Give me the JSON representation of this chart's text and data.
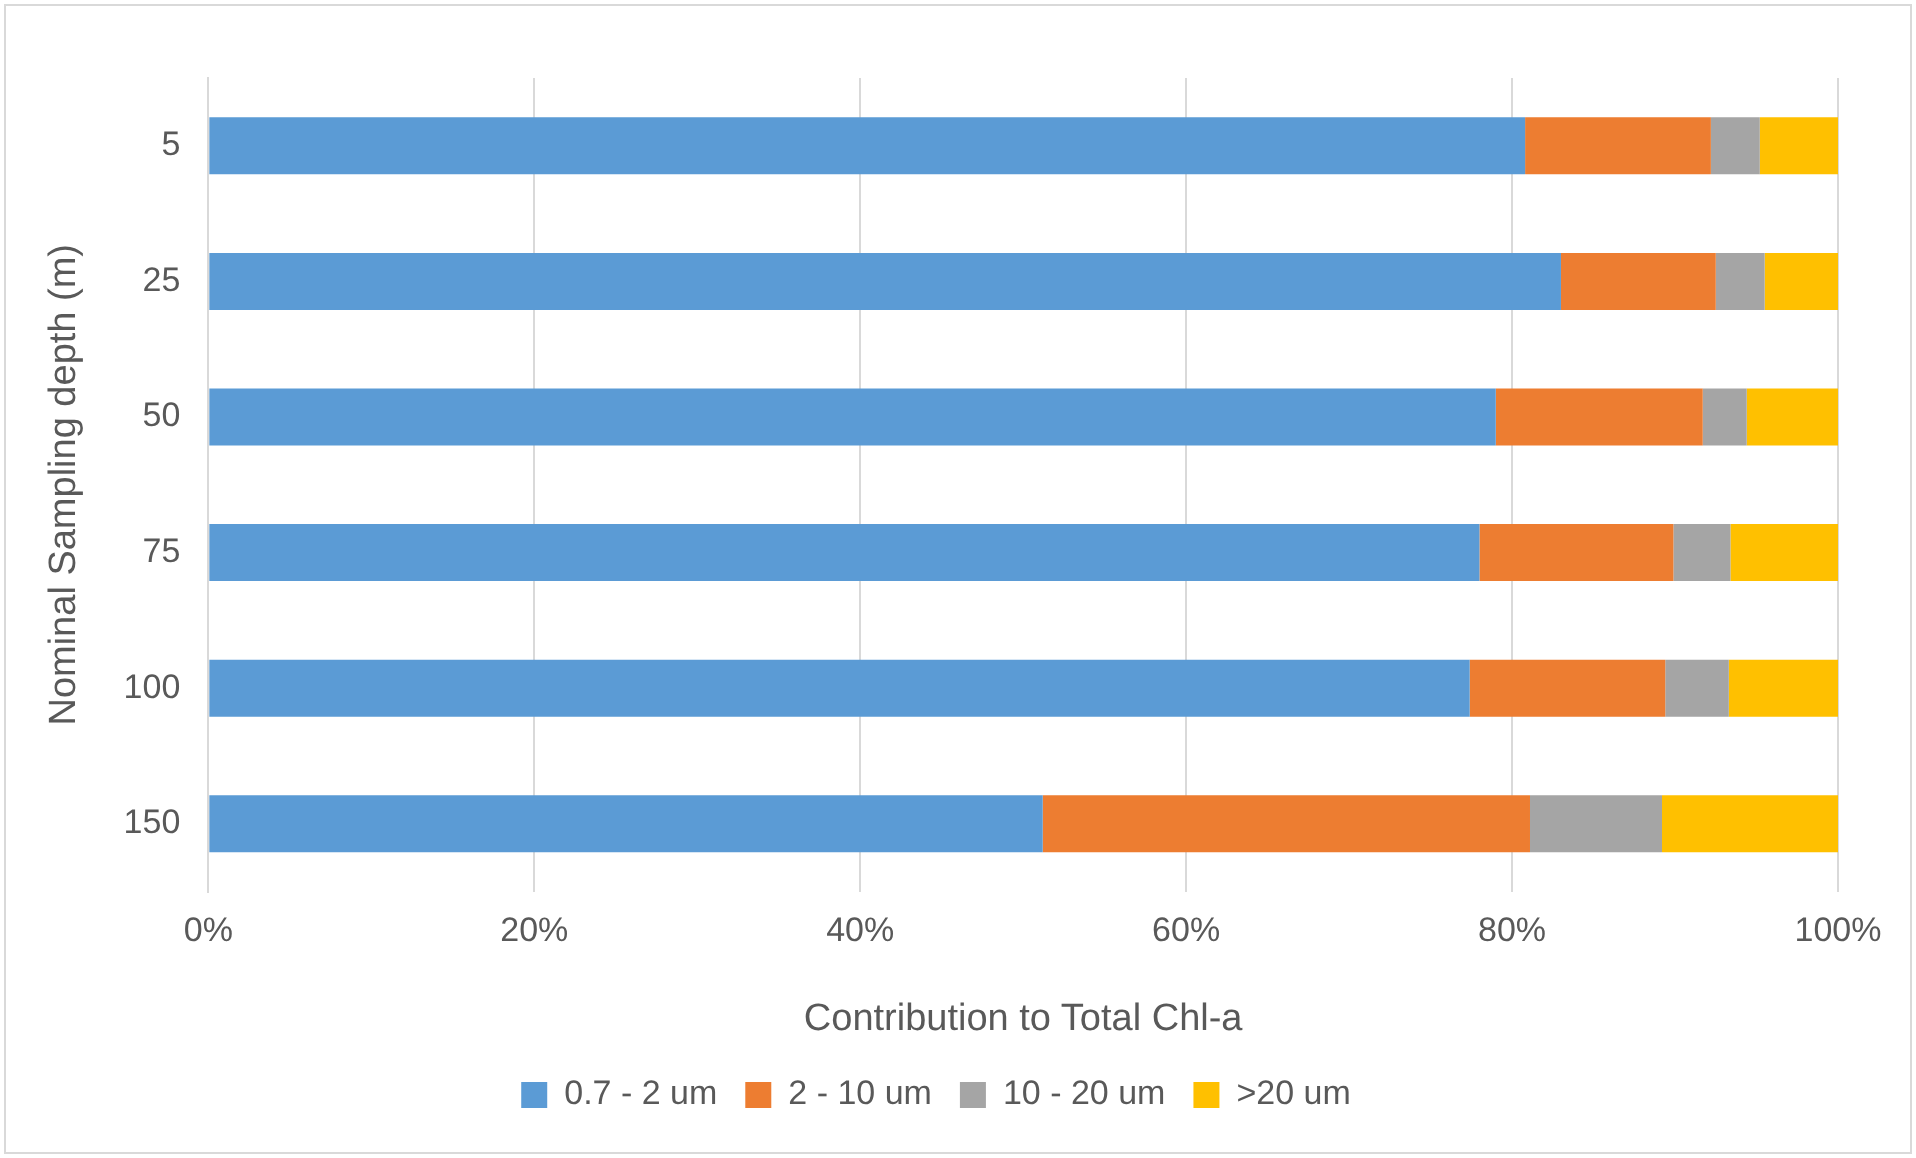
{
  "chart_data": {
    "type": "bar",
    "orientation": "horizontal",
    "stacked": true,
    "xlabel": "Contribution to Total Chl-a",
    "ylabel": "Nominal Sampling depth (m)",
    "categories": [
      "5",
      "25",
      "50",
      "75",
      "100",
      "150"
    ],
    "series": [
      {
        "name": "0.7 - 2 um",
        "color": "#5b9bd5",
        "values": [
          80.8,
          83.0,
          79.0,
          78.0,
          77.4,
          51.2
        ]
      },
      {
        "name": "2 - 10 um",
        "color": "#ed7d31",
        "values": [
          11.4,
          9.5,
          12.7,
          11.9,
          12.0,
          29.9
        ]
      },
      {
        "name": "10 - 20 um",
        "color": "#a5a5a5",
        "values": [
          3.0,
          3.0,
          2.7,
          3.5,
          3.9,
          8.1
        ]
      },
      {
        "name": ">20 um",
        "color": "#ffc000",
        "values": [
          4.8,
          4.5,
          5.6,
          6.6,
          6.7,
          10.8
        ]
      }
    ],
    "xlim": [
      0,
      100
    ],
    "xticks": [
      {
        "value": 0,
        "label": "0%"
      },
      {
        "value": 20,
        "label": "20%"
      },
      {
        "value": 40,
        "label": "40%"
      },
      {
        "value": 60,
        "label": "60%"
      },
      {
        "value": 80,
        "label": "80%"
      },
      {
        "value": 100,
        "label": "100%"
      }
    ],
    "grid": "x",
    "legend": "bottom"
  }
}
